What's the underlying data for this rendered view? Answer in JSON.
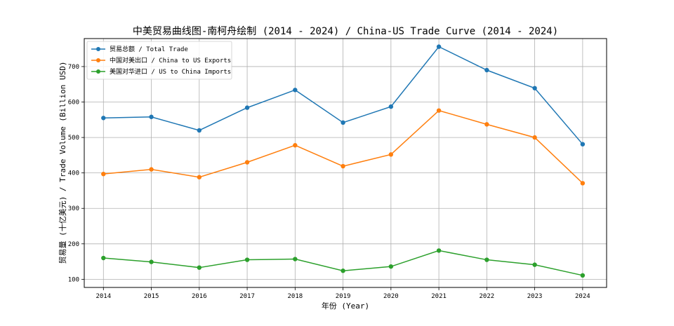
{
  "chart_data": {
    "type": "line",
    "title": "中美贸易曲线图-南柯舟绘制 (2014 - 2024) / China-US Trade Curve (2014 - 2024)",
    "xlabel": "年份 (Year)",
    "ylabel": "贸易量 (十亿美元) / Trade Volume (Billion USD)",
    "x": [
      2014,
      2015,
      2016,
      2017,
      2018,
      2019,
      2020,
      2021,
      2022,
      2023,
      2024
    ],
    "xlim": [
      2013.6,
      2024.5
    ],
    "ylim": [
      77,
      779
    ],
    "yticks": [
      100,
      200,
      300,
      400,
      500,
      600,
      700
    ],
    "grid": true,
    "legend_position": "top-left",
    "series": [
      {
        "name": "贸易总额 / Total Trade",
        "color": "#1f77b4",
        "values": [
          555,
          558,
          520,
          584,
          634,
          542,
          587,
          756,
          690,
          639,
          481
        ]
      },
      {
        "name": "中国对美出口 / China to US Exports",
        "color": "#ff7f0e",
        "values": [
          397,
          410,
          388,
          430,
          478,
          419,
          452,
          576,
          537,
          500,
          371
        ]
      },
      {
        "name": "美国对华进口 / US to China Imports",
        "color": "#2ca02c",
        "values": [
          160,
          149,
          133,
          155,
          157,
          124,
          136,
          181,
          155,
          141,
          111
        ]
      }
    ]
  }
}
